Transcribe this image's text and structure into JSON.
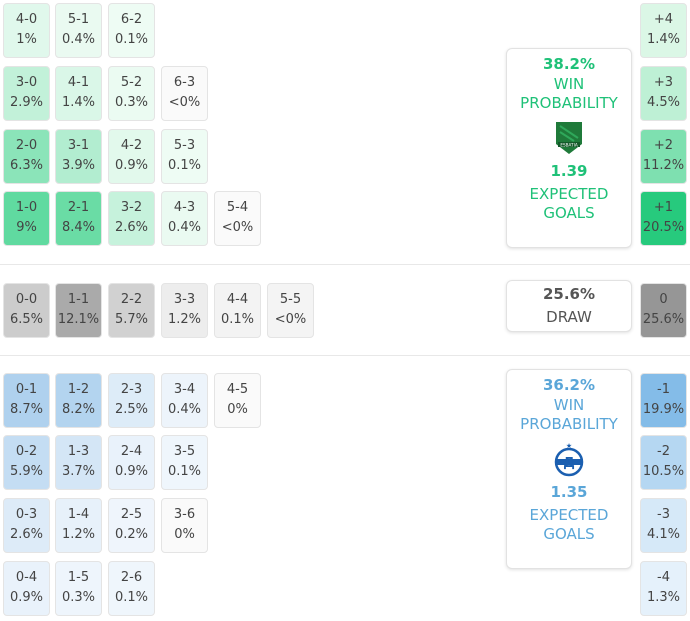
{
  "home": {
    "color": "#1fc178",
    "win_pct": "38.2%",
    "win_label_1": "WIN",
    "win_label_2": "PROBABILITY",
    "xg": "1.39",
    "xg_label_1": "EXPECTED",
    "xg_label_2": "GOALS",
    "logo_text": "ESBATIA",
    "rows": [
      [
        {
          "score": "4-0",
          "pct": "1%"
        },
        {
          "score": "5-1",
          "pct": "0.4%"
        },
        {
          "score": "6-2",
          "pct": "0.1%"
        }
      ],
      [
        {
          "score": "3-0",
          "pct": "2.9%"
        },
        {
          "score": "4-1",
          "pct": "1.4%"
        },
        {
          "score": "5-2",
          "pct": "0.3%"
        },
        {
          "score": "6-3",
          "pct": "<0%"
        }
      ],
      [
        {
          "score": "2-0",
          "pct": "6.3%"
        },
        {
          "score": "3-1",
          "pct": "3.9%"
        },
        {
          "score": "4-2",
          "pct": "0.9%"
        },
        {
          "score": "5-3",
          "pct": "0.1%"
        }
      ],
      [
        {
          "score": "1-0",
          "pct": "9%"
        },
        {
          "score": "2-1",
          "pct": "8.4%"
        },
        {
          "score": "3-2",
          "pct": "2.6%"
        },
        {
          "score": "4-3",
          "pct": "0.4%"
        },
        {
          "score": "5-4",
          "pct": "<0%"
        }
      ]
    ],
    "margins": [
      {
        "margin": "+4",
        "pct": "1.4%"
      },
      {
        "margin": "+3",
        "pct": "4.5%"
      },
      {
        "margin": "+2",
        "pct": "11.2%"
      },
      {
        "margin": "+1",
        "pct": "20.5%"
      }
    ]
  },
  "draw": {
    "pct": "25.6%",
    "label": "DRAW",
    "row": [
      {
        "score": "0-0",
        "pct": "6.5%"
      },
      {
        "score": "1-1",
        "pct": "12.1%"
      },
      {
        "score": "2-2",
        "pct": "5.7%"
      },
      {
        "score": "3-3",
        "pct": "1.2%"
      },
      {
        "score": "4-4",
        "pct": "0.1%"
      },
      {
        "score": "5-5",
        "pct": "<0%"
      }
    ],
    "margin": {
      "margin": "0",
      "pct": "25.6%"
    }
  },
  "away": {
    "color": "#5aa6d8",
    "win_pct": "36.2%",
    "win_label_1": "WIN",
    "win_label_2": "PROBABILITY",
    "xg": "1.35",
    "xg_label_1": "EXPECTED",
    "xg_label_2": "GOALS",
    "logo_text": "Д",
    "rows": [
      [
        {
          "score": "0-1",
          "pct": "8.7%"
        },
        {
          "score": "1-2",
          "pct": "8.2%"
        },
        {
          "score": "2-3",
          "pct": "2.5%"
        },
        {
          "score": "3-4",
          "pct": "0.4%"
        },
        {
          "score": "4-5",
          "pct": "0%"
        }
      ],
      [
        {
          "score": "0-2",
          "pct": "5.9%"
        },
        {
          "score": "1-3",
          "pct": "3.7%"
        },
        {
          "score": "2-4",
          "pct": "0.9%"
        },
        {
          "score": "3-5",
          "pct": "0.1%"
        }
      ],
      [
        {
          "score": "0-3",
          "pct": "2.6%"
        },
        {
          "score": "1-4",
          "pct": "1.2%"
        },
        {
          "score": "2-5",
          "pct": "0.2%"
        },
        {
          "score": "3-6",
          "pct": "0%"
        }
      ],
      [
        {
          "score": "0-4",
          "pct": "0.9%"
        },
        {
          "score": "1-5",
          "pct": "0.3%"
        },
        {
          "score": "2-6",
          "pct": "0.1%"
        }
      ]
    ],
    "margins": [
      {
        "margin": "-1",
        "pct": "19.9%"
      },
      {
        "margin": "-2",
        "pct": "10.5%"
      },
      {
        "margin": "-3",
        "pct": "4.1%"
      },
      {
        "margin": "-4",
        "pct": "1.3%"
      }
    ]
  }
}
